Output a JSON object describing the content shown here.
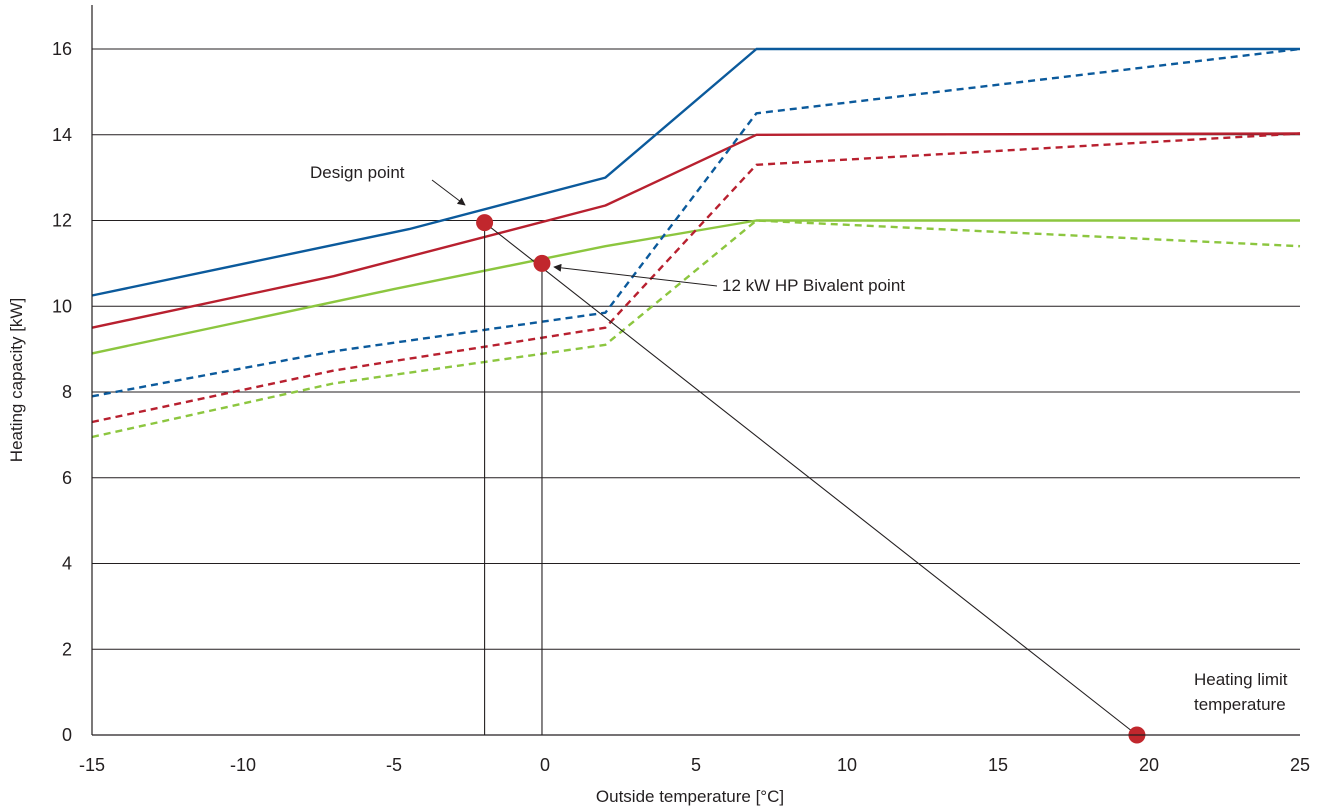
{
  "chart_data": {
    "type": "line",
    "xlabel": "Outside temperature [°C]",
    "ylabel": "Heating capacity [kW]",
    "xlim": [
      -15,
      25
    ],
    "ylim": [
      0,
      16
    ],
    "x_ticks": [
      "-15",
      "-10",
      "-5",
      "0",
      "5",
      "10",
      "15",
      "20",
      "25"
    ],
    "y_ticks": [
      "0",
      "2",
      "4",
      "6",
      "8",
      "10",
      "12",
      "14",
      "16"
    ],
    "grid": "horizontal",
    "colors": {
      "blue": "#0b5a9c",
      "red": "#b8202f",
      "green": "#8cc63f",
      "marker": "#c1272d",
      "line": "#231f20"
    },
    "series": [
      {
        "color": "blue",
        "style": "solid",
        "points": [
          [
            -15,
            10.25
          ],
          [
            -4.5,
            11.8
          ],
          [
            2,
            13
          ],
          [
            7,
            16
          ],
          [
            25,
            16
          ]
        ]
      },
      {
        "color": "red",
        "style": "solid",
        "points": [
          [
            -15,
            9.5
          ],
          [
            -7,
            10.7
          ],
          [
            2,
            12.35
          ],
          [
            7,
            14
          ],
          [
            25,
            14.03
          ]
        ]
      },
      {
        "color": "green",
        "style": "solid",
        "points": [
          [
            -15,
            8.9
          ],
          [
            -5,
            10.4
          ],
          [
            2,
            11.4
          ],
          [
            7,
            12
          ],
          [
            25,
            12
          ]
        ]
      },
      {
        "color": "blue",
        "style": "dashed",
        "points": [
          [
            -15,
            7.9
          ],
          [
            -7,
            8.95
          ],
          [
            2,
            9.85
          ],
          [
            7,
            14.5
          ],
          [
            25,
            16
          ]
        ]
      },
      {
        "color": "red",
        "style": "dashed",
        "points": [
          [
            -15,
            7.3
          ],
          [
            -7,
            8.5
          ],
          [
            2,
            9.5
          ],
          [
            7,
            13.3
          ],
          [
            25,
            14.03
          ]
        ]
      },
      {
        "color": "green",
        "style": "dashed",
        "points": [
          [
            -15,
            6.95
          ],
          [
            -7,
            8.2
          ],
          [
            2,
            9.1
          ],
          [
            7,
            12
          ],
          [
            25,
            11.4
          ]
        ]
      }
    ],
    "heating_line": [
      [
        -2,
        11.95
      ],
      [
        19.6,
        0
      ]
    ],
    "markers": [
      {
        "name": "design-point",
        "x": -2,
        "y": 11.95
      },
      {
        "name": "bivalent-point",
        "x": -0.1,
        "y": 11
      },
      {
        "name": "heating-limit",
        "x": 19.6,
        "y": 0
      }
    ],
    "vertical_drops": [
      {
        "x": -2,
        "y": 11.95
      },
      {
        "x": -0.1,
        "y": 11
      }
    ],
    "annotations": {
      "design_point": "Design point",
      "bivalent_point": "12 kW HP Bivalent point",
      "heating_limit_line1": "Heating limit",
      "heating_limit_line2": "temperature"
    }
  }
}
